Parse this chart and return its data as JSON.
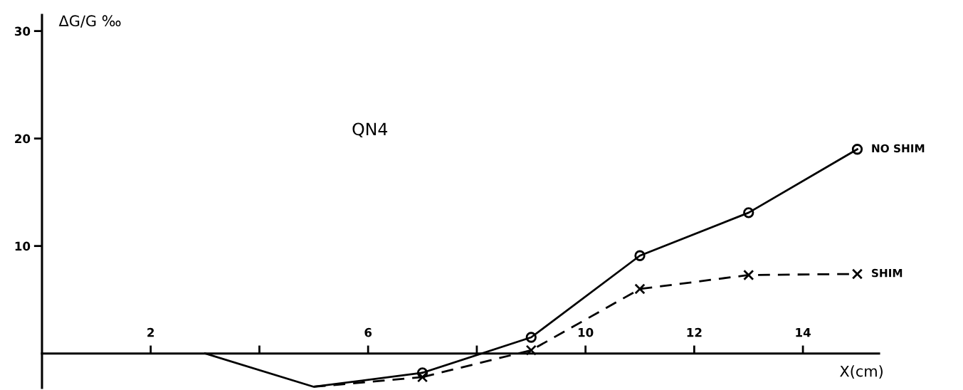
{
  "chart_data": {
    "type": "line",
    "ylabel": "ΔG/G ‰",
    "xlabel": "X(cm)",
    "annotations": [
      "QN4"
    ],
    "xlim": [
      0,
      15.4
    ],
    "ylim": [
      -3.2,
      31.5
    ],
    "xticks": [
      {
        "value": 2,
        "label": "2"
      },
      {
        "value": 4,
        "label": null
      },
      {
        "value": 6,
        "label": "6"
      },
      {
        "value": 8,
        "label": null
      },
      10,
      12,
      14
    ],
    "yticks": [
      10,
      20,
      30
    ],
    "grid": false,
    "legend": false,
    "series": [
      {
        "color": "#000000",
        "line_style": "solid",
        "x": [
          3,
          5,
          7
        ],
        "values": [
          0,
          -3.1,
          -1.8
        ]
      },
      {
        "name": "NO SHIM",
        "color": "#000000",
        "line_style": "solid",
        "marker": "circle",
        "x": [
          7,
          9,
          11,
          13,
          15
        ],
        "values": [
          -1.8,
          1.5,
          9.1,
          13.1,
          19.0
        ]
      },
      {
        "color": "#000000",
        "line_style": "dashed",
        "x": [
          5,
          7
        ],
        "values": [
          -3.1,
          -2.2
        ]
      },
      {
        "name": "SHIM",
        "color": "#000000",
        "line_style": "dashed",
        "marker": "cross",
        "x": [
          7,
          9,
          11,
          13,
          15
        ],
        "values": [
          -2.2,
          0.3,
          6.0,
          7.3,
          7.4
        ]
      }
    ]
  }
}
